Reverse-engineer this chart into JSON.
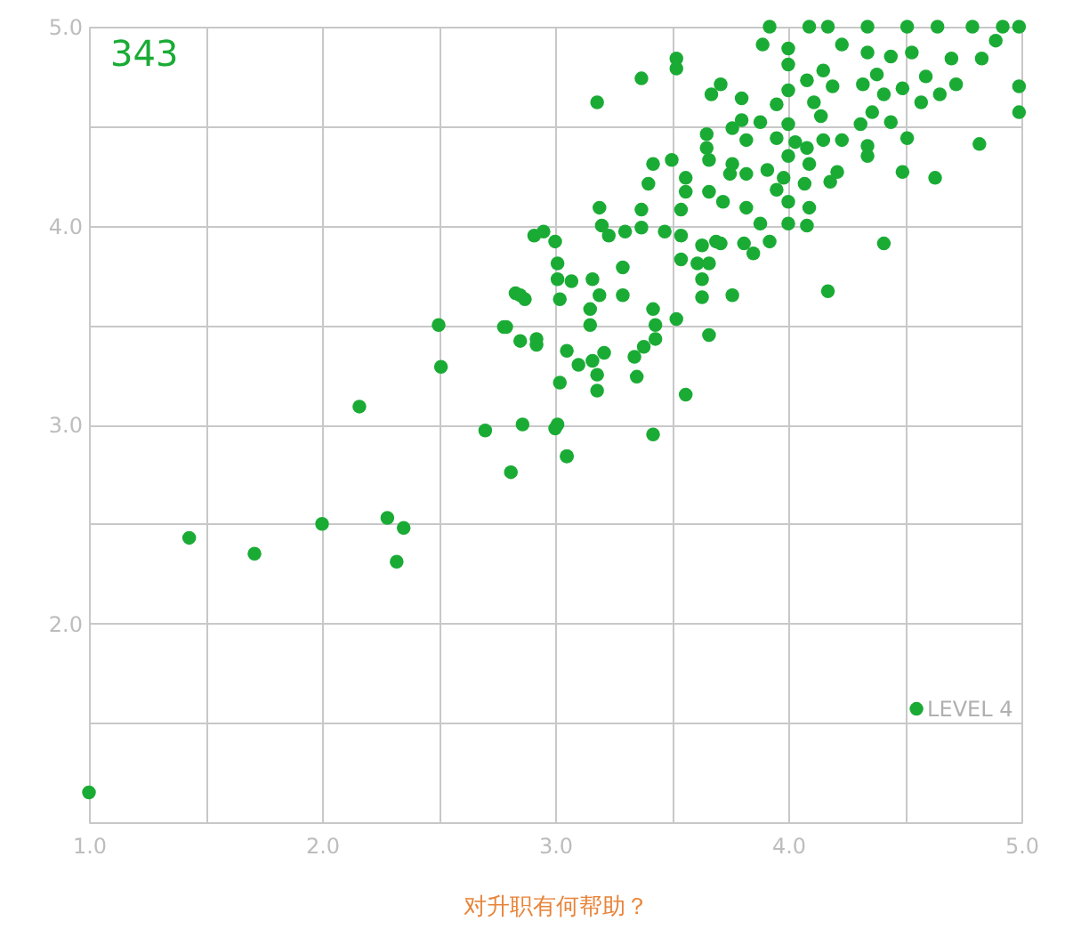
{
  "chart_data": {
    "type": "scatter",
    "xlabel": "对升职有何帮助？",
    "xlim": [
      1,
      5
    ],
    "ylim": [
      1,
      5
    ],
    "xticks": [
      {
        "value": 1,
        "label": "1.0"
      },
      {
        "value": 1.5,
        "label": null
      },
      {
        "value": 2,
        "label": "2.0"
      },
      {
        "value": 2.5,
        "label": null
      },
      {
        "value": 3,
        "label": "3.0"
      },
      {
        "value": 3.5,
        "label": null
      },
      {
        "value": 4,
        "label": "4.0"
      },
      {
        "value": 4.5,
        "label": null
      },
      {
        "value": 5,
        "label": "5.0"
      }
    ],
    "yticks": [
      {
        "value": 1,
        "label": null
      },
      {
        "value": 1.5,
        "label": null
      },
      {
        "value": 2,
        "label": "2.0"
      },
      {
        "value": 2.5,
        "label": null
      },
      {
        "value": 3,
        "label": "3.0"
      },
      {
        "value": 3.5,
        "label": null
      },
      {
        "value": 4,
        "label": "4.0"
      },
      {
        "value": 4.5,
        "label": null
      },
      {
        "value": 5,
        "label": "5.0"
      }
    ],
    "grid": true,
    "marker": "circle",
    "annotations": [
      "343",
      {
        "text": "LEVEL 4",
        "x": 4.55,
        "y": 1.57
      }
    ],
    "series": [
      {
        "color": "#1aab35",
        "x": [
          1.0,
          1.43,
          1.71,
          2.0,
          2.28,
          2.35,
          2.32,
          4.55,
          2.5,
          2.51,
          2.16,
          2.7,
          2.79,
          2.85,
          2.92,
          2.83,
          2.87,
          2.91,
          2.81,
          3.05,
          3.42,
          3.0,
          3.92,
          4.09,
          4.17,
          4.34,
          4.51,
          4.64,
          4.79,
          4.92,
          4.99,
          3.89,
          4.0,
          4.0,
          4.23,
          4.34,
          4.44,
          4.53,
          4.7,
          4.83,
          4.89,
          4.99,
          4.99,
          3.52,
          3.52,
          3.37,
          3.18,
          3.71,
          3.67,
          3.8,
          4.0,
          4.08,
          4.15,
          4.19,
          4.32,
          4.41,
          4.49,
          4.59,
          4.65,
          4.72,
          4.57,
          4.38,
          4.11,
          4.14,
          3.95,
          3.88,
          3.8,
          3.76,
          3.65,
          4.0,
          3.95,
          3.82,
          4.03,
          4.0,
          4.08,
          4.15,
          4.23,
          4.31,
          4.36,
          4.44,
          4.51,
          4.34,
          4.34,
          4.49,
          4.63,
          4.82,
          4.21,
          4.18,
          4.09,
          3.65,
          3.66,
          3.76,
          3.75,
          3.82,
          3.91,
          3.98,
          3.95,
          4.07,
          4.09,
          4.0,
          4.0,
          4.08,
          3.42,
          3.5,
          3.4,
          3.56,
          3.56,
          3.66,
          3.72,
          3.82,
          3.88,
          3.92,
          3.85,
          3.81,
          3.69,
          3.63,
          3.54,
          3.47,
          3.37,
          3.3,
          3.23,
          3.2,
          3.19,
          3.37,
          3.54,
          2.95,
          3.0,
          3.01,
          3.01,
          3.07,
          2.85,
          3.02,
          3.16,
          3.19,
          3.29,
          3.29,
          3.54,
          3.61,
          3.66,
          3.63,
          3.63,
          3.76,
          3.71,
          3.15,
          3.15,
          2.78,
          2.92,
          3.05,
          3.1,
          3.16,
          3.21,
          3.18,
          3.34,
          3.38,
          3.43,
          3.43,
          3.42,
          3.52,
          3.66,
          4.17,
          4.41,
          3.02,
          3.18,
          3.35,
          3.56,
          2.86,
          3.01,
          3.05
        ],
        "values": [
          1.15,
          2.43,
          2.35,
          2.5,
          2.53,
          2.48,
          2.31,
          1.57,
          3.5,
          3.29,
          3.09,
          2.97,
          3.49,
          3.42,
          3.43,
          3.66,
          3.63,
          3.95,
          2.76,
          2.84,
          2.95,
          2.98,
          5.0,
          5.0,
          5.0,
          5.0,
          5.0,
          5.0,
          5.0,
          5.0,
          5.0,
          4.91,
          4.89,
          4.81,
          4.91,
          4.87,
          4.85,
          4.87,
          4.84,
          4.84,
          4.93,
          4.7,
          4.57,
          4.84,
          4.79,
          4.74,
          4.62,
          4.71,
          4.66,
          4.64,
          4.68,
          4.73,
          4.78,
          4.7,
          4.71,
          4.66,
          4.69,
          4.75,
          4.66,
          4.71,
          4.62,
          4.76,
          4.62,
          4.55,
          4.61,
          4.52,
          4.53,
          4.49,
          4.46,
          4.51,
          4.44,
          4.43,
          4.42,
          4.35,
          4.39,
          4.43,
          4.43,
          4.51,
          4.57,
          4.52,
          4.44,
          4.4,
          4.35,
          4.27,
          4.24,
          4.41,
          4.27,
          4.22,
          4.31,
          4.39,
          4.33,
          4.31,
          4.26,
          4.26,
          4.28,
          4.24,
          4.18,
          4.21,
          4.09,
          4.12,
          4.01,
          4.0,
          4.31,
          4.33,
          4.21,
          4.24,
          4.17,
          4.17,
          4.12,
          4.09,
          4.01,
          3.92,
          3.86,
          3.91,
          3.92,
          3.9,
          3.95,
          3.97,
          3.99,
          3.97,
          3.95,
          4.0,
          4.09,
          4.08,
          4.08,
          3.97,
          3.92,
          3.81,
          3.73,
          3.72,
          3.65,
          3.63,
          3.73,
          3.65,
          3.79,
          3.65,
          3.83,
          3.81,
          3.81,
          3.73,
          3.64,
          3.65,
          3.91,
          3.58,
          3.5,
          3.49,
          3.4,
          3.37,
          3.3,
          3.32,
          3.36,
          3.25,
          3.34,
          3.39,
          3.43,
          3.5,
          3.58,
          3.53,
          3.45,
          3.67,
          3.91,
          3.21,
          3.17,
          3.24,
          3.15,
          3.0,
          3.0,
          2.84
        ]
      }
    ]
  }
}
